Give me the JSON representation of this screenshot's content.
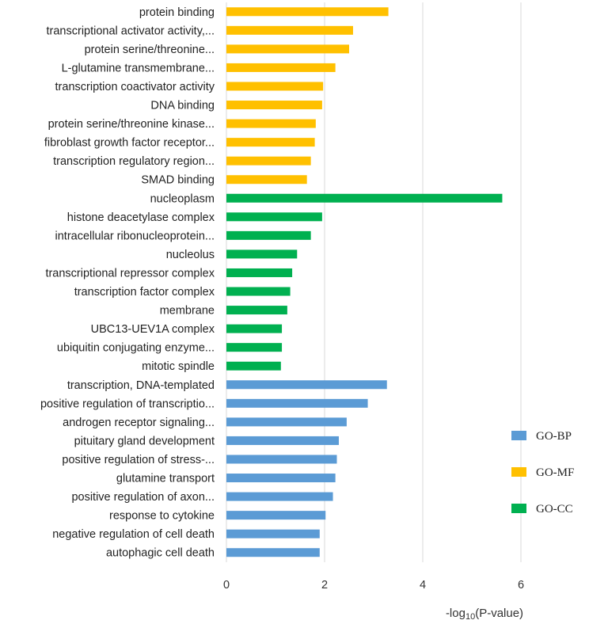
{
  "chart_data": {
    "type": "bar",
    "orientation": "horizontal",
    "categories": [
      "protein binding",
      "transcriptional activator activity,...",
      "protein serine/threonine...",
      "L-glutamine transmembrane...",
      "transcription coactivator activity",
      "DNA binding",
      "protein serine/threonine kinase...",
      "fibroblast growth factor receptor...",
      "transcription regulatory region...",
      "SMAD binding",
      "nucleoplasm",
      "histone deacetylase complex",
      "intracellular ribonucleoprotein...",
      "nucleolus",
      "transcriptional repressor complex",
      "transcription factor complex",
      "membrane",
      "UBC13-UEV1A complex",
      "ubiquitin conjugating enzyme...",
      "mitotic spindle",
      "transcription, DNA-templated",
      "positive regulation of transcriptio...",
      "androgen receptor signaling...",
      "pituitary gland development",
      "positive regulation of stress-...",
      "glutamine transport",
      "positive regulation of axon...",
      "response to cytokine",
      "negative regulation of cell death",
      "autophagic cell death"
    ],
    "values": [
      3.3,
      2.58,
      2.5,
      2.22,
      1.97,
      1.95,
      1.82,
      1.8,
      1.72,
      1.64,
      5.62,
      1.95,
      1.72,
      1.44,
      1.34,
      1.3,
      1.24,
      1.13,
      1.13,
      1.11,
      3.27,
      2.88,
      2.45,
      2.29,
      2.25,
      2.22,
      2.17,
      2.02,
      1.9,
      1.9
    ],
    "groups": [
      "GO-MF",
      "GO-MF",
      "GO-MF",
      "GO-MF",
      "GO-MF",
      "GO-MF",
      "GO-MF",
      "GO-MF",
      "GO-MF",
      "GO-MF",
      "GO-CC",
      "GO-CC",
      "GO-CC",
      "GO-CC",
      "GO-CC",
      "GO-CC",
      "GO-CC",
      "GO-CC",
      "GO-CC",
      "GO-CC",
      "GO-BP",
      "GO-BP",
      "GO-BP",
      "GO-BP",
      "GO-BP",
      "GO-BP",
      "GO-BP",
      "GO-BP",
      "GO-BP",
      "GO-BP"
    ],
    "series": [
      {
        "name": "GO-BP",
        "color": "#5b9bd5"
      },
      {
        "name": "GO-MF",
        "color": "#ffc000"
      },
      {
        "name": "GO-CC",
        "color": "#00b050"
      }
    ],
    "xticks": [
      "0",
      "2",
      "4",
      "6"
    ],
    "xlim": [
      0,
      7
    ],
    "xlabel_parts": {
      "pre": "-log",
      "sub": "10",
      "post": "(P-value)"
    },
    "grid": true,
    "legend_position": "right"
  }
}
